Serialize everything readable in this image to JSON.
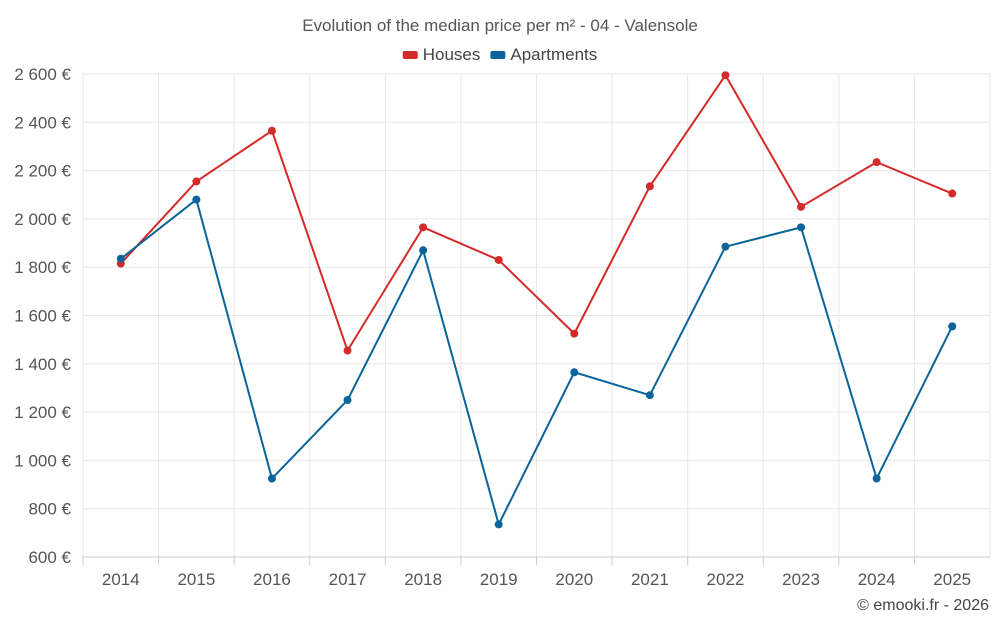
{
  "chart_data": {
    "type": "line",
    "title": "Evolution of the median price per m² - 04 - Valensole",
    "categories": [
      "2014",
      "2015",
      "2016",
      "2017",
      "2018",
      "2019",
      "2020",
      "2021",
      "2022",
      "2023",
      "2024",
      "2025"
    ],
    "series": [
      {
        "name": "Houses",
        "color": "#d42a2a",
        "values": [
          1815,
          2155,
          2365,
          1455,
          1965,
          1830,
          1525,
          2135,
          2595,
          2050,
          2235,
          2105
        ]
      },
      {
        "name": "Apartments",
        "color": "#0a6499",
        "values": [
          1835,
          2080,
          925,
          1250,
          1870,
          735,
          1365,
          1270,
          1885,
          1965,
          925,
          1555
        ]
      }
    ],
    "ylim": [
      600,
      2600
    ],
    "yticks": [
      600,
      800,
      1000,
      1200,
      1400,
      1600,
      1800,
      2000,
      2200,
      2400,
      2600
    ],
    "ytick_labels": [
      "600 €",
      "800 €",
      "1 000 €",
      "1 200 €",
      "1 400 €",
      "1 600 €",
      "1 800 €",
      "2 000 €",
      "2 200 €",
      "2 400 €",
      "2 600 €"
    ],
    "xlabel": "",
    "ylabel": "",
    "legend_position": "top-center",
    "grid": true
  },
  "credit": "© emooki.fr - 2026"
}
